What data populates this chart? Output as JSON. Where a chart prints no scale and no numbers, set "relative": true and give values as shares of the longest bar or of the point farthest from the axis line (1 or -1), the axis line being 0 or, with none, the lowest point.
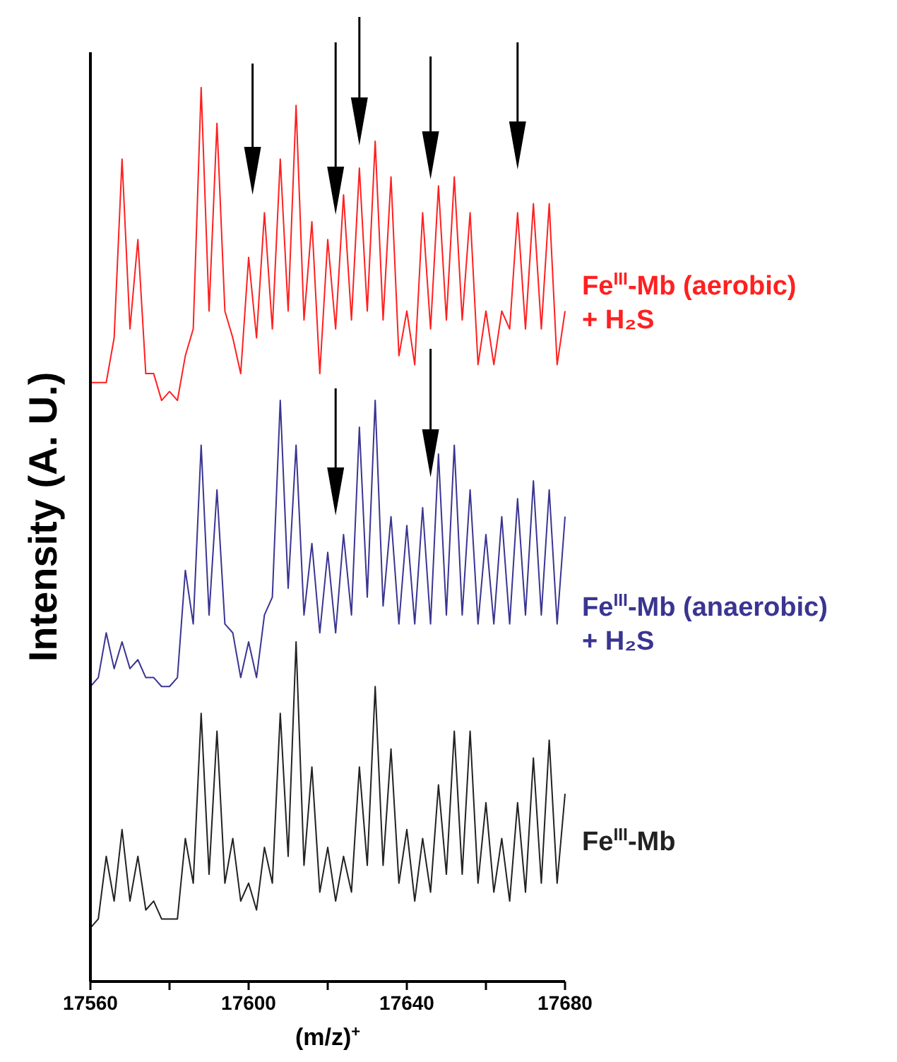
{
  "chart_data": {
    "type": "line",
    "relative": true,
    "xlabel": "(m/z)$^{+}$",
    "ylabel": "Intensity (A. U.)",
    "xlim": [
      17560,
      17680
    ],
    "xticks": [
      17560,
      {
        "value": 17580,
        "label": null
      },
      17600,
      {
        "value": 17620,
        "label": null
      },
      17640,
      {
        "value": 17660,
        "label": null
      },
      17680
    ],
    "legend": false,
    "grid": false,
    "x": [
      17560,
      17562,
      17564,
      17566,
      17568,
      17570,
      17572,
      17574,
      17576,
      17578,
      17580,
      17582,
      17584,
      17586,
      17588,
      17590,
      17592,
      17594,
      17596,
      17598,
      17600,
      17602,
      17604,
      17606,
      17608,
      17610,
      17612,
      17614,
      17616,
      17618,
      17620,
      17622,
      17624,
      17626,
      17628,
      17630,
      17632,
      17634,
      17636,
      17638,
      17640,
      17642,
      17644,
      17646,
      17648,
      17650,
      17652,
      17654,
      17656,
      17658,
      17660,
      17662,
      17664,
      17666,
      17668,
      17670,
      17672,
      17674,
      17676,
      17678,
      17680
    ],
    "series": [
      {
        "name": "Fe$^{III}$-Mb (aerobic)\n+ H₂S",
        "color": "#ff2020",
        "values": [
          0.67,
          0.67,
          0.67,
          0.72,
          0.92,
          0.73,
          0.83,
          0.68,
          0.68,
          0.65,
          0.66,
          0.65,
          0.7,
          0.73,
          1.0,
          0.75,
          0.96,
          0.75,
          0.72,
          0.68,
          0.81,
          0.72,
          0.86,
          0.73,
          0.92,
          0.75,
          0.98,
          0.74,
          0.85,
          0.68,
          0.83,
          0.73,
          0.88,
          0.74,
          0.91,
          0.75,
          0.94,
          0.74,
          0.9,
          0.7,
          0.75,
          0.69,
          0.86,
          0.73,
          0.89,
          0.74,
          0.9,
          0.74,
          0.86,
          0.69,
          0.75,
          0.69,
          0.75,
          0.73,
          0.86,
          0.73,
          0.87,
          0.73,
          0.87,
          0.69,
          0.75
        ]
      },
      {
        "name": "Fe$^{III}$-Mb (anaerobic)\n+ H₂S",
        "color": "#3a3591",
        "values": [
          0.33,
          0.34,
          0.39,
          0.35,
          0.38,
          0.35,
          0.36,
          0.34,
          0.34,
          0.33,
          0.33,
          0.34,
          0.46,
          0.4,
          0.6,
          0.41,
          0.55,
          0.4,
          0.39,
          0.34,
          0.38,
          0.34,
          0.41,
          0.43,
          0.65,
          0.44,
          0.6,
          0.41,
          0.49,
          0.39,
          0.48,
          0.39,
          0.5,
          0.41,
          0.62,
          0.43,
          0.65,
          0.42,
          0.52,
          0.4,
          0.51,
          0.4,
          0.53,
          0.4,
          0.59,
          0.41,
          0.6,
          0.41,
          0.55,
          0.4,
          0.5,
          0.4,
          0.52,
          0.4,
          0.54,
          0.41,
          0.56,
          0.41,
          0.55,
          0.4,
          0.52
        ]
      },
      {
        "name": "Fe$^{III}$-Mb",
        "color": "#222222",
        "values": [
          0.06,
          0.07,
          0.14,
          0.09,
          0.17,
          0.09,
          0.14,
          0.08,
          0.09,
          0.07,
          0.07,
          0.07,
          0.16,
          0.11,
          0.3,
          0.12,
          0.28,
          0.11,
          0.16,
          0.09,
          0.11,
          0.08,
          0.15,
          0.11,
          0.3,
          0.14,
          0.38,
          0.13,
          0.24,
          0.1,
          0.15,
          0.09,
          0.14,
          0.1,
          0.24,
          0.13,
          0.33,
          0.13,
          0.26,
          0.11,
          0.17,
          0.09,
          0.16,
          0.1,
          0.22,
          0.12,
          0.28,
          0.12,
          0.28,
          0.11,
          0.2,
          0.1,
          0.16,
          0.09,
          0.2,
          0.1,
          0.25,
          0.11,
          0.27,
          0.11,
          0.21
        ]
      }
    ]
  }
}
